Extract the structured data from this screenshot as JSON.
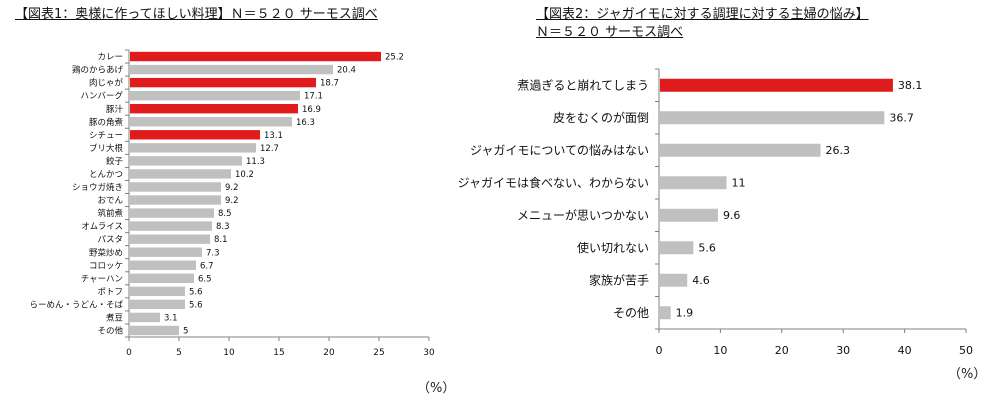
{
  "chart_data": [
    {
      "type": "bar",
      "orientation": "horizontal",
      "title": "【図表1：奥様に作ってほしい料理】Ｎ＝５２０ サーモス調べ",
      "unit_label": "（%）",
      "categories": [
        "カレー",
        "鶏のからあげ",
        "肉じゃが",
        "ハンバーグ",
        "豚汁",
        "豚の角煮",
        "シチュー",
        "ブリ大根",
        "餃子",
        "とんかつ",
        "ショウガ焼き",
        "おでん",
        "筑前煮",
        "オムライス",
        "パスタ",
        "野菜炒め",
        "コロッケ",
        "チャーハン",
        "ポトフ",
        "らーめん・うどん・そば",
        "煮豆",
        "その他"
      ],
      "values": [
        25.2,
        20.4,
        18.7,
        17.1,
        16.9,
        16.3,
        13.1,
        12.7,
        11.3,
        10.2,
        9.2,
        9.2,
        8.5,
        8.3,
        8.1,
        7.3,
        6.7,
        6.5,
        5.6,
        5.6,
        3.1,
        5
      ],
      "value_labels": [
        "25.2",
        "20.4",
        "18.7",
        "17.1",
        "16.9",
        "16.3",
        "13.1",
        "12.7",
        "11.3",
        "10.2",
        "9.2",
        "9.2",
        "8.5",
        "8.3",
        "8.1",
        "7.3",
        "6.7",
        "6.5",
        "5.6",
        "5.6",
        "3.1",
        "5"
      ],
      "highlighted": [
        true,
        false,
        true,
        false,
        true,
        false,
        true,
        false,
        false,
        false,
        false,
        false,
        false,
        false,
        false,
        false,
        false,
        false,
        false,
        false,
        false,
        false
      ],
      "xlim": [
        0,
        30
      ],
      "xticks": [
        0,
        5,
        10,
        15,
        20,
        25,
        30
      ],
      "grid": false
    },
    {
      "type": "bar",
      "orientation": "horizontal",
      "title": "【図表2：ジャガイモに対する調理に対する主婦の悩み】",
      "subtitle": "Ｎ＝５２０ サーモス調べ",
      "unit_label": "（%）",
      "categories": [
        "煮過ぎると崩れてしまう",
        "皮をむくのが面倒",
        "ジャガイモについての悩みはない",
        "ジャガイモは食べない、わからない",
        "メニューが思いつかない",
        "使い切れない",
        "家族が苦手",
        "その他"
      ],
      "values": [
        38.1,
        36.7,
        26.3,
        11,
        9.6,
        5.6,
        4.6,
        1.9
      ],
      "value_labels": [
        "38.1",
        "36.7",
        "26.3",
        "11",
        "9.6",
        "5.6",
        "4.6",
        "1.9"
      ],
      "highlighted": [
        true,
        false,
        false,
        false,
        false,
        false,
        false,
        false
      ],
      "xlim": [
        0,
        50
      ],
      "xticks": [
        0,
        10,
        20,
        30,
        40,
        50
      ],
      "grid": false
    }
  ],
  "colors": {
    "highlight": "#e01b1b",
    "normal": "#c0c0c0",
    "axis": "#808080"
  }
}
